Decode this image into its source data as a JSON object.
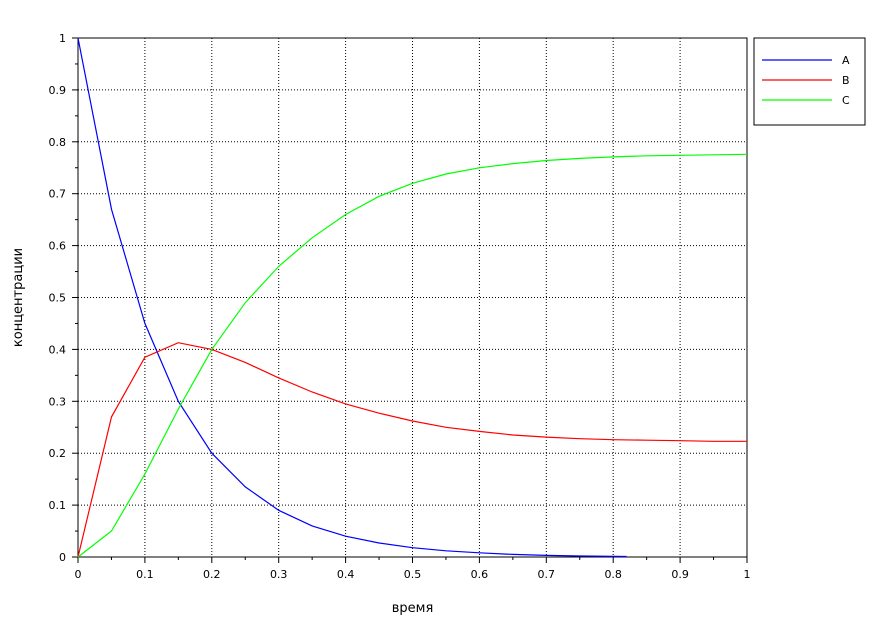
{
  "chart_data": {
    "type": "line",
    "xlabel": "время",
    "ylabel": "концентрации",
    "xlim": [
      0,
      1
    ],
    "ylim": [
      0,
      1
    ],
    "xticks": [
      "0",
      "0.1",
      "0.2",
      "0.3",
      "0.4",
      "0.5",
      "0.6",
      "0.7",
      "0.8",
      "0.9",
      "1"
    ],
    "yticks": [
      "0",
      "0.1",
      "0.2",
      "0.3",
      "0.4",
      "0.5",
      "0.6",
      "0.7",
      "0.8",
      "0.9",
      "1"
    ],
    "grid": true,
    "legend_position": "top-right",
    "series": [
      {
        "name": "A",
        "color": "#0000ff",
        "x": [
          0,
          0.05,
          0.1,
          0.15,
          0.2,
          0.25,
          0.3,
          0.35,
          0.4,
          0.45,
          0.5,
          0.55,
          0.6,
          0.65,
          0.7,
          0.75,
          0.82
        ],
        "y": [
          1,
          0.67,
          0.45,
          0.3,
          0.2,
          0.135,
          0.09,
          0.06,
          0.04,
          0.027,
          0.018,
          0.012,
          0.008,
          0.005,
          0.003,
          0.002,
          0.001
        ]
      },
      {
        "name": "B",
        "color": "#ff0000",
        "x": [
          0,
          0.05,
          0.1,
          0.15,
          0.2,
          0.25,
          0.3,
          0.35,
          0.4,
          0.45,
          0.5,
          0.55,
          0.6,
          0.65,
          0.7,
          0.75,
          0.8,
          0.85,
          0.9,
          0.95,
          1
        ],
        "y": [
          0,
          0.27,
          0.385,
          0.413,
          0.4,
          0.375,
          0.345,
          0.318,
          0.295,
          0.277,
          0.262,
          0.25,
          0.242,
          0.235,
          0.231,
          0.228,
          0.226,
          0.225,
          0.224,
          0.223,
          0.223
        ]
      },
      {
        "name": "C",
        "color": "#00ff00",
        "x": [
          0,
          0.05,
          0.1,
          0.15,
          0.2,
          0.25,
          0.3,
          0.35,
          0.4,
          0.45,
          0.5,
          0.55,
          0.6,
          0.65,
          0.7,
          0.75,
          0.8,
          0.85,
          0.9,
          0.95,
          1
        ],
        "y": [
          0,
          0.05,
          0.16,
          0.285,
          0.4,
          0.49,
          0.56,
          0.615,
          0.66,
          0.695,
          0.72,
          0.738,
          0.75,
          0.758,
          0.764,
          0.768,
          0.771,
          0.773,
          0.774,
          0.775,
          0.776
        ]
      }
    ]
  }
}
